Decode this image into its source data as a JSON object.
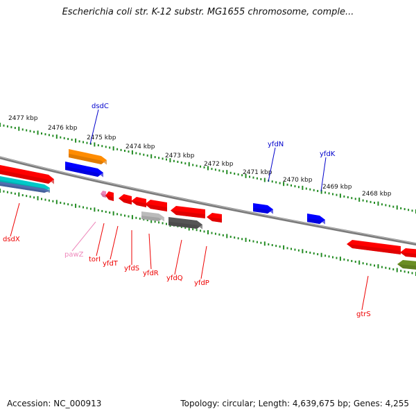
{
  "title": "Escherichia coli str. K-12 substr. MG1655 chromosome, comple...",
  "accession": "Accession: NC_000913",
  "summary": "Topology: circular; Length: 4,639,675 bp; Genes: 4,255",
  "ruler": {
    "labels": [
      "2477 kbp",
      "2476 kbp",
      "2475 kbp",
      "2474 kbp",
      "2473 kbp",
      "2472 kbp",
      "2471 kbp",
      "2470 kbp",
      "2469 kbp",
      "2468 kbp"
    ]
  },
  "genes": [
    {
      "name": "dsdX",
      "color": "#ee0000"
    },
    {
      "name": "dsdC",
      "color": "#0000cc"
    },
    {
      "name": "pawZ",
      "color": "#ee88bb"
    },
    {
      "name": "torI",
      "color": "#ee0000"
    },
    {
      "name": "yfdT",
      "color": "#ee0000"
    },
    {
      "name": "yfdS",
      "color": "#ee0000"
    },
    {
      "name": "yfdR",
      "color": "#ee0000"
    },
    {
      "name": "yfdQ",
      "color": "#ee0000"
    },
    {
      "name": "yfdP",
      "color": "#ee0000"
    },
    {
      "name": "yfdN",
      "color": "#0000cc"
    },
    {
      "name": "yfdK",
      "color": "#0000cc"
    },
    {
      "name": "gtrS",
      "color": "#ee0000"
    }
  ],
  "colors": {
    "backbone": "#808080",
    "ruler": "#228b22",
    "forward": "#0000ff",
    "reverse": "#ff0000",
    "rna": "#ff8c00",
    "cyan": "#00c8c8",
    "grey": "#555555",
    "light_grey": "#bbbbbb",
    "olive": "#6b8e23"
  }
}
